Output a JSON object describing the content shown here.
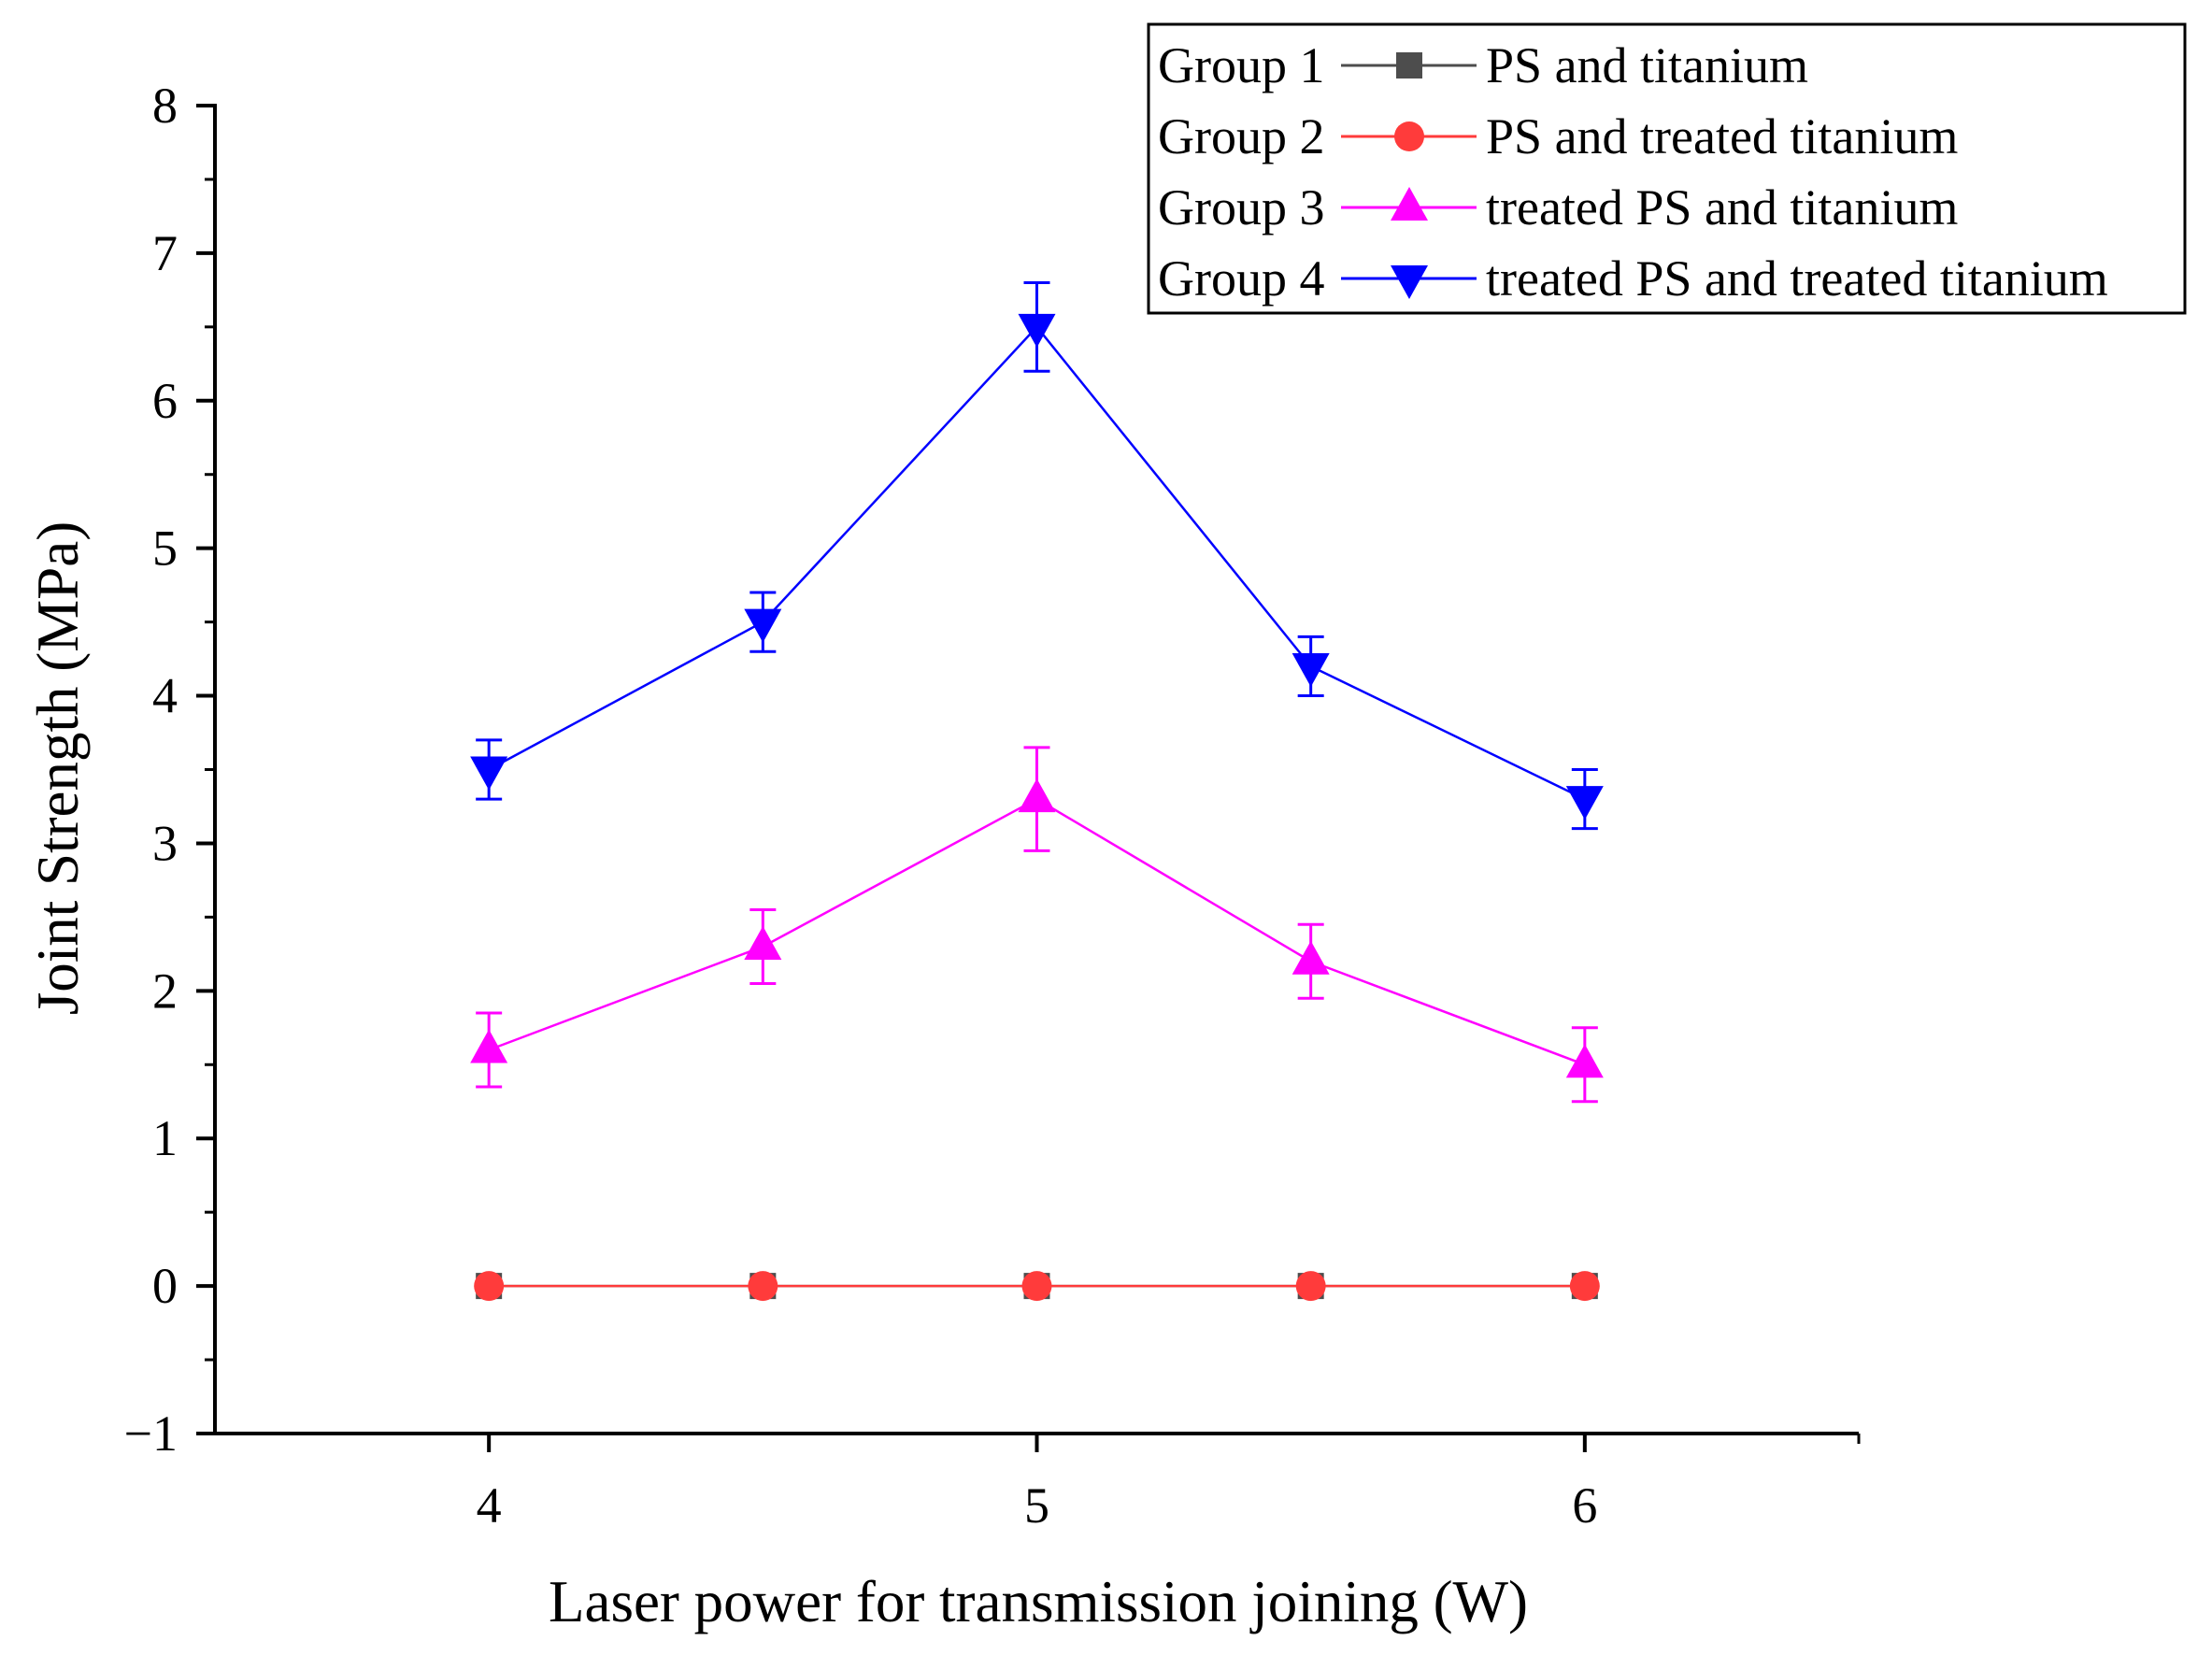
{
  "chart_data": {
    "type": "line",
    "xlabel": "Laser power for transmission joining (W)",
    "ylabel": "Joint Strength (MPa)",
    "xlim": [
      3.5,
      6.5
    ],
    "ylim": [
      -1,
      8
    ],
    "x_ticks": [
      "4",
      "5",
      "6"
    ],
    "x_tick_values": [
      4,
      5,
      6
    ],
    "y_ticks": [
      "−1",
      "0",
      "1",
      "2",
      "3",
      "4",
      "5",
      "6",
      "7",
      "8"
    ],
    "y_tick_values": [
      -1,
      0,
      1,
      2,
      3,
      4,
      5,
      6,
      7,
      8
    ],
    "grid": false,
    "legend_position": "top-right",
    "x": [
      4,
      4.5,
      5,
      5.5,
      6
    ],
    "series": [
      {
        "group": "Group 1",
        "name": "PS and titanium",
        "color": "#4d4d4d",
        "marker": "square",
        "values": [
          0,
          0,
          0,
          0,
          0
        ],
        "errors": [
          0,
          0,
          0,
          0,
          0
        ]
      },
      {
        "group": "Group 2",
        "name": "PS and treated titanium",
        "color": "#ff3b3b",
        "marker": "circle",
        "values": [
          0,
          0,
          0,
          0,
          0
        ],
        "errors": [
          0,
          0,
          0,
          0,
          0
        ]
      },
      {
        "group": "Group 3",
        "name": "treated PS and titanium",
        "color": "#ff00ff",
        "marker": "triangle-up",
        "values": [
          1.6,
          2.3,
          3.3,
          2.2,
          1.5
        ],
        "errors": [
          0.25,
          0.25,
          0.35,
          0.25,
          0.25
        ]
      },
      {
        "group": "Group 4",
        "name": "treated PS and treated titanium",
        "color": "#0000ff",
        "marker": "triangle-down",
        "values": [
          3.5,
          4.5,
          6.5,
          4.2,
          3.3
        ],
        "errors": [
          0.2,
          0.2,
          0.3,
          0.2,
          0.2
        ]
      }
    ]
  }
}
